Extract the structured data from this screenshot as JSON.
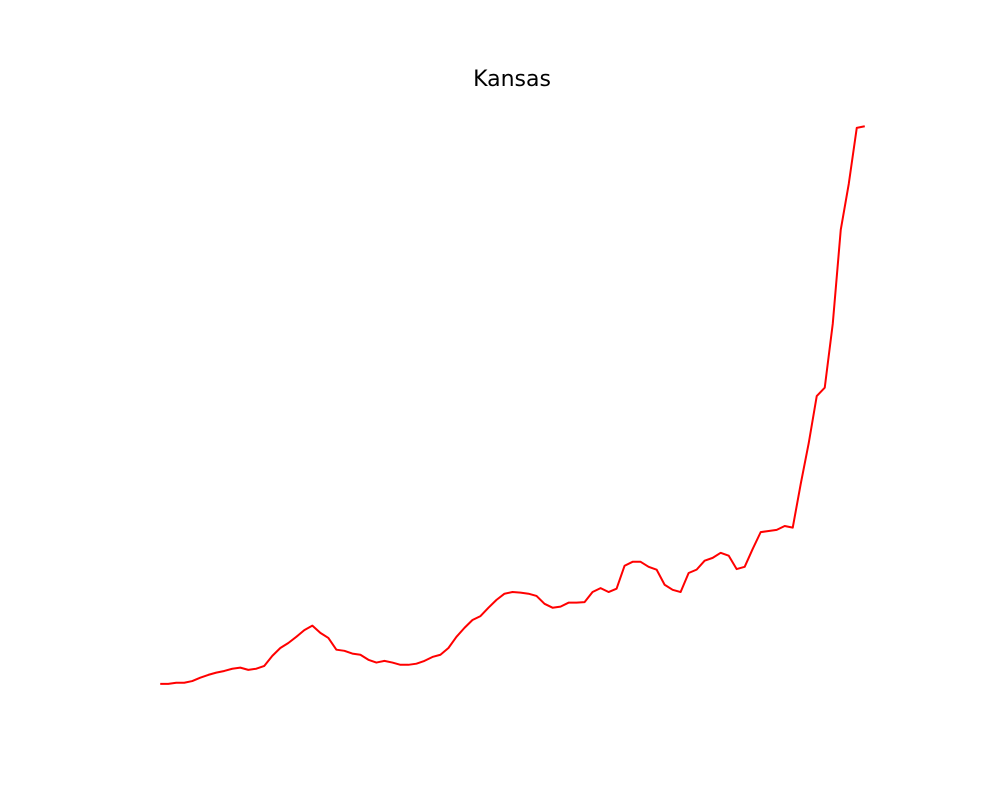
{
  "chart_data": {
    "type": "line",
    "title": "Kansas",
    "axes_visible": false,
    "x": [
      0,
      1,
      2,
      3,
      4,
      5,
      6,
      7,
      8,
      9,
      10,
      11,
      12,
      13,
      14,
      15,
      16,
      17,
      18,
      19,
      20,
      21,
      22,
      23,
      24,
      25,
      26,
      27,
      28,
      29,
      30,
      31,
      32,
      33,
      34,
      35,
      36,
      37,
      38,
      39,
      40,
      41,
      42,
      43,
      44,
      45,
      46,
      47,
      48,
      49,
      50,
      51,
      52,
      53,
      54,
      55,
      56,
      57,
      58,
      59,
      60,
      61,
      62,
      63,
      64,
      65,
      66,
      67,
      68,
      69,
      70,
      71,
      72,
      73,
      74,
      75,
      76,
      77,
      78,
      79,
      80,
      81,
      82,
      83,
      84,
      85,
      86,
      87,
      88
    ],
    "series": [
      {
        "name": "Kansas",
        "color": "#ff0000",
        "values": [
          0,
          0,
          0.2,
          0.2,
          0.5,
          1.1,
          1.6,
          2.0,
          2.3,
          2.7,
          2.9,
          2.5,
          2.7,
          3.2,
          5.0,
          6.4,
          7.3,
          8.4,
          9.6,
          10.4,
          9.1,
          8.2,
          6.1,
          5.9,
          5.4,
          5.2,
          4.3,
          3.8,
          4.1,
          3.8,
          3.4,
          3.4,
          3.6,
          4.1,
          4.8,
          5.2,
          6.4,
          8.4,
          10.0,
          11.4,
          12.1,
          13.6,
          15.0,
          16.1,
          16.4,
          16.3,
          16.1,
          15.7,
          14.3,
          13.6,
          13.8,
          14.5,
          14.5,
          14.6,
          16.4,
          17.1,
          16.4,
          17.0,
          21.1,
          21.8,
          21.8,
          20.9,
          20.4,
          17.7,
          16.8,
          16.4,
          19.8,
          20.4,
          22.0,
          22.5,
          23.4,
          22.9,
          20.5,
          20.9,
          24.1,
          27.1,
          27.3,
          27.5,
          28.2,
          27.9,
          35.7,
          43.0,
          51.4,
          52.9,
          64.3,
          81.1,
          89.3,
          99.3,
          99.6
        ]
      }
    ],
    "xlim": [
      -4.4,
      92.4
    ],
    "ylim": [
      -3.6,
      105
    ]
  }
}
